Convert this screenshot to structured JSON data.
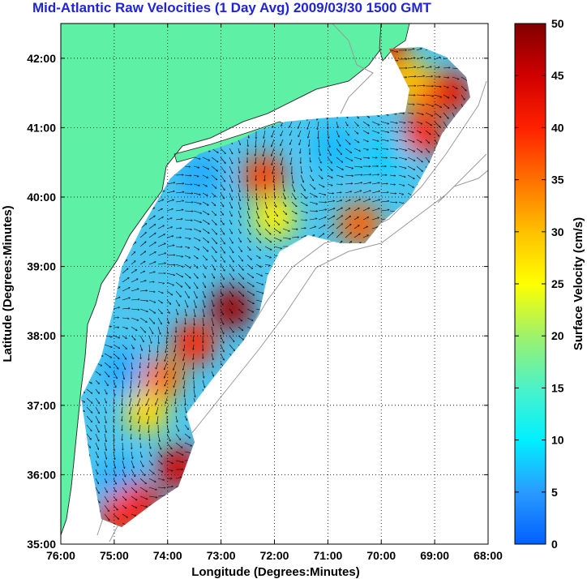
{
  "title": "Mid-Atlantic Raw Velocities (1 Day Avg) 2009/03/30 1500 GMT",
  "map": {
    "xlabel": "Longitude (Degrees:Minutes)",
    "ylabel": "Latitude (Degrees:Minutes)",
    "x_ticks": [
      {
        "value": -76,
        "label": "76:00"
      },
      {
        "value": -75,
        "label": "75:00"
      },
      {
        "value": -74,
        "label": "74:00"
      },
      {
        "value": -73,
        "label": "73:00"
      },
      {
        "value": -72,
        "label": "72:00"
      },
      {
        "value": -71,
        "label": "71:00"
      },
      {
        "value": -70,
        "label": "70:00"
      },
      {
        "value": -69,
        "label": "69:00"
      },
      {
        "value": -68,
        "label": "68:00"
      }
    ],
    "y_ticks": [
      {
        "value": 35,
        "label": "35:00"
      },
      {
        "value": 36,
        "label": "36:00"
      },
      {
        "value": 37,
        "label": "37:00"
      },
      {
        "value": 38,
        "label": "38:00"
      },
      {
        "value": 39,
        "label": "39:00"
      },
      {
        "value": 40,
        "label": "40:00"
      },
      {
        "value": 41,
        "label": "41:00"
      },
      {
        "value": 42,
        "label": "42:00"
      }
    ],
    "xlim": [
      -76,
      -68
    ],
    "ylim": [
      35,
      42.5
    ],
    "grid": true,
    "land_color": "#5ef0a4",
    "hotspots": [
      {
        "lon": -72.8,
        "lat": 38.4,
        "speed": 48
      },
      {
        "lon": -73.5,
        "lat": 37.9,
        "speed": 40
      },
      {
        "lon": -74.1,
        "lat": 37.4,
        "speed": 35
      },
      {
        "lon": -74.4,
        "lat": 36.9,
        "speed": 28
      },
      {
        "lon": -73.8,
        "lat": 36.1,
        "speed": 44
      },
      {
        "lon": -74.5,
        "lat": 35.6,
        "speed": 42
      },
      {
        "lon": -74.9,
        "lat": 35.4,
        "speed": 40
      },
      {
        "lon": -72.2,
        "lat": 40.3,
        "speed": 38
      },
      {
        "lon": -72.0,
        "lat": 39.7,
        "speed": 26
      },
      {
        "lon": -70.4,
        "lat": 39.6,
        "speed": 36
      },
      {
        "lon": -69.2,
        "lat": 40.9,
        "speed": 40
      },
      {
        "lon": -69.2,
        "lat": 41.5,
        "speed": 36
      },
      {
        "lon": -68.7,
        "lat": 41.5,
        "speed": 42
      },
      {
        "lon": -69.9,
        "lat": 42.1,
        "speed": 44
      },
      {
        "lon": -69.5,
        "lat": 41.7,
        "speed": 30
      }
    ],
    "calm_spots": [
      {
        "lon": -73.4,
        "lat": 40.3,
        "speed": 6
      },
      {
        "lon": -70.9,
        "lat": 40.7,
        "speed": 7
      },
      {
        "lon": -69.9,
        "lat": 40.6,
        "speed": 8
      },
      {
        "lon": -74.8,
        "lat": 37.5,
        "speed": 6
      },
      {
        "lon": -74.9,
        "lat": 35.9,
        "speed": 6
      }
    ]
  },
  "colorbar": {
    "label": "Surface Velocity (cm/s)",
    "min": 0,
    "max": 50,
    "ticks": [
      {
        "value": 0,
        "label": "0"
      },
      {
        "value": 5,
        "label": "5"
      },
      {
        "value": 10,
        "label": "10"
      },
      {
        "value": 15,
        "label": "15"
      },
      {
        "value": 20,
        "label": "20"
      },
      {
        "value": 25,
        "label": "25"
      },
      {
        "value": 30,
        "label": "30"
      },
      {
        "value": 35,
        "label": "35"
      },
      {
        "value": 40,
        "label": "40"
      },
      {
        "value": 45,
        "label": "45"
      },
      {
        "value": 50,
        "label": "50"
      }
    ]
  }
}
